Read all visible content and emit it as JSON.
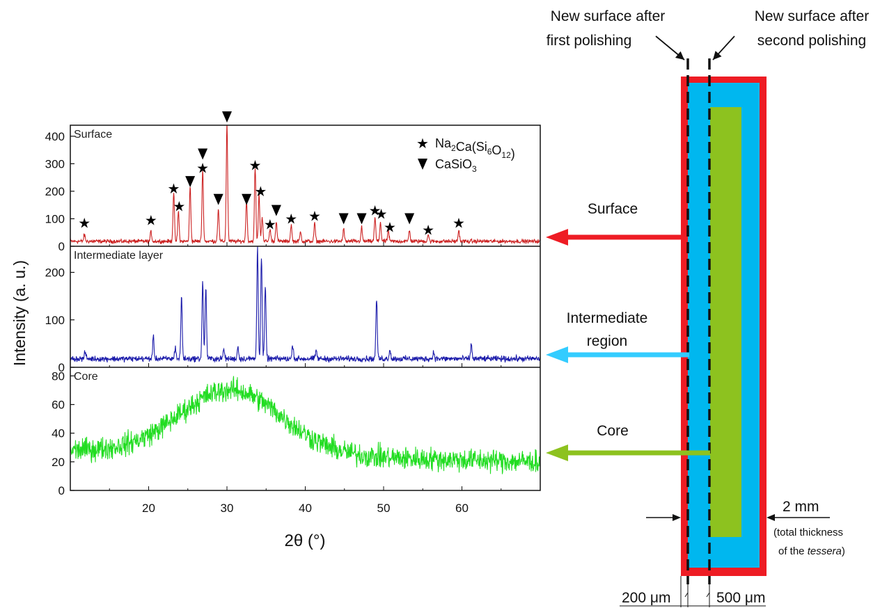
{
  "figure": {
    "y_axis_label": "Intensity (a. u.)",
    "x_axis_label": "2θ (°)",
    "legend": [
      {
        "marker": "star",
        "formula_parts": [
          [
            "Na",
            "n"
          ],
          [
            "2",
            "sub"
          ],
          [
            "Ca(Si",
            "n"
          ],
          [
            "6",
            "sub"
          ],
          [
            "O",
            "n"
          ],
          [
            "12",
            "sub"
          ],
          [
            ")",
            "n"
          ]
        ]
      },
      {
        "marker": "triangle-down",
        "formula_parts": [
          [
            "CaSiO",
            "n"
          ],
          [
            "3",
            "sub"
          ]
        ]
      }
    ]
  },
  "schematic": {
    "first_polish_label": [
      "New surface after",
      "first polishing"
    ],
    "second_polish_label": [
      "New surface after",
      "second polishing"
    ],
    "arrows": [
      {
        "label": [
          "Surface"
        ],
        "color": "#ee1c24"
      },
      {
        "label": [
          "Intermediate",
          "region"
        ],
        "color": "#33ccff"
      },
      {
        "label": [
          "Core"
        ],
        "color": "#8dc21f"
      }
    ],
    "thickness_value": "2 mm",
    "thickness_note": [
      "(total thickness",
      "of the ",
      "tessera",
      ")"
    ],
    "depth_1": "200 μm",
    "depth_2": "500 μm",
    "layer_colors": {
      "surface": "#ee1c24",
      "intermediate": "#00b7ef",
      "core": "#8dc21f"
    }
  },
  "chart_data": [
    {
      "type": "line",
      "title": "Surface",
      "xlim": [
        10,
        70
      ],
      "ylim": [
        0,
        440
      ],
      "x_ticks": [
        20,
        30,
        40,
        50,
        60
      ],
      "y_ticks": [
        0,
        100,
        200,
        300,
        400
      ],
      "color": "#cc2222",
      "baseline": 18,
      "noise": 7,
      "peaks": [
        [
          11.8,
          25
        ],
        [
          20.3,
          35
        ],
        [
          23.2,
          180
        ],
        [
          23.8,
          110
        ],
        [
          25.3,
          200
        ],
        [
          26.9,
          260
        ],
        [
          28.9,
          120
        ],
        [
          30.0,
          430
        ],
        [
          32.5,
          150
        ],
        [
          33.6,
          270
        ],
        [
          34.1,
          170
        ],
        [
          34.5,
          90
        ],
        [
          35.5,
          45
        ],
        [
          36.3,
          75
        ],
        [
          38.2,
          60
        ],
        [
          39.4,
          35
        ],
        [
          41.2,
          65
        ],
        [
          44.9,
          45
        ],
        [
          47.2,
          50
        ],
        [
          48.9,
          85
        ],
        [
          49.6,
          70
        ],
        [
          50.6,
          40
        ],
        [
          53.3,
          40
        ],
        [
          55.7,
          25
        ],
        [
          59.6,
          40
        ]
      ],
      "markers": [
        {
          "x": 11.8,
          "y": 85,
          "type": "star"
        },
        {
          "x": 20.3,
          "y": 95,
          "type": "star"
        },
        {
          "x": 23.2,
          "y": 210,
          "type": "star"
        },
        {
          "x": 23.9,
          "y": 145,
          "type": "star"
        },
        {
          "x": 25.3,
          "y": 235,
          "type": "triangle"
        },
        {
          "x": 26.9,
          "y": 285,
          "type": "star"
        },
        {
          "x": 26.9,
          "y": 335,
          "type": "triangle"
        },
        {
          "x": 28.9,
          "y": 170,
          "type": "triangle"
        },
        {
          "x": 30.0,
          "y": 470,
          "type": "triangle"
        },
        {
          "x": 32.5,
          "y": 170,
          "type": "triangle"
        },
        {
          "x": 33.6,
          "y": 295,
          "type": "star"
        },
        {
          "x": 34.3,
          "y": 200,
          "type": "star"
        },
        {
          "x": 35.5,
          "y": 80,
          "type": "star"
        },
        {
          "x": 36.3,
          "y": 130,
          "type": "triangle"
        },
        {
          "x": 38.2,
          "y": 100,
          "type": "star"
        },
        {
          "x": 41.2,
          "y": 110,
          "type": "star"
        },
        {
          "x": 44.9,
          "y": 100,
          "type": "triangle"
        },
        {
          "x": 47.2,
          "y": 100,
          "type": "triangle"
        },
        {
          "x": 48.9,
          "y": 130,
          "type": "star"
        },
        {
          "x": 49.7,
          "y": 118,
          "type": "star"
        },
        {
          "x": 50.8,
          "y": 70,
          "type": "star"
        },
        {
          "x": 53.3,
          "y": 100,
          "type": "triangle"
        },
        {
          "x": 55.7,
          "y": 60,
          "type": "star"
        },
        {
          "x": 59.6,
          "y": 85,
          "type": "star"
        }
      ]
    },
    {
      "type": "line",
      "title": "Intermediate layer",
      "xlim": [
        10,
        70
      ],
      "ylim": [
        0,
        255
      ],
      "y_ticks": [
        0,
        100,
        200
      ],
      "color": "#1a1aaa",
      "baseline": 18,
      "noise": 6,
      "peaks": [
        [
          11.9,
          15
        ],
        [
          20.6,
          45
        ],
        [
          23.4,
          25
        ],
        [
          24.2,
          130
        ],
        [
          26.9,
          160
        ],
        [
          27.3,
          150
        ],
        [
          29.6,
          20
        ],
        [
          31.4,
          25
        ],
        [
          33.9,
          235
        ],
        [
          34.4,
          215
        ],
        [
          34.9,
          150
        ],
        [
          38.4,
          30
        ],
        [
          41.4,
          18
        ],
        [
          49.1,
          125
        ],
        [
          50.8,
          20
        ],
        [
          56.4,
          15
        ],
        [
          61.2,
          30
        ]
      ]
    },
    {
      "type": "line",
      "title": "Core",
      "xlim": [
        10,
        70
      ],
      "ylim": [
        0,
        86
      ],
      "y_ticks": [
        0,
        20,
        40,
        60,
        80
      ],
      "color": "#22dd22",
      "baseline": 20,
      "noise": 5,
      "hump": {
        "center": 30.5,
        "height": 45,
        "width": 6.5,
        "tail_start": 28,
        "tail_end": 20
      }
    }
  ]
}
